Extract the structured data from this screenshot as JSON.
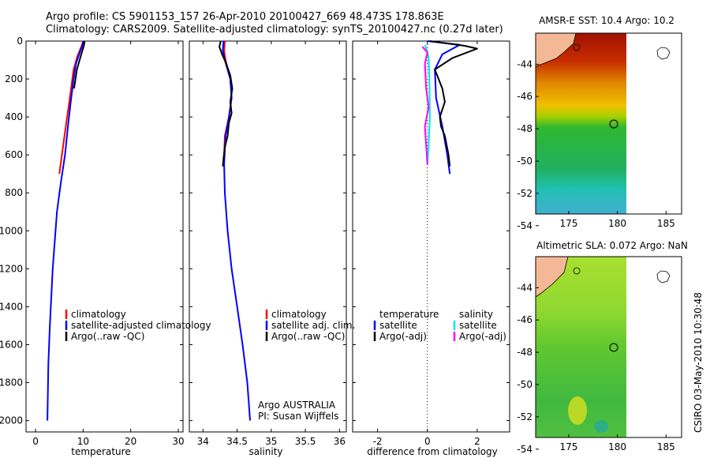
{
  "header": {
    "line1": "Argo profile: CS 5901153_157 26-Apr-2010 20100427_669 48.473S 178.863E",
    "line2": "Climatology: CARS2009. Satellite-adjusted climatology: synTS_20100427.nc (0.27d later)"
  },
  "side_label": "CSIRO 03-May-2010 10:30:48",
  "colors": {
    "climatology": "#ff0000",
    "satellite": "#0000ff",
    "argo": "#000000",
    "argo_adj": "#ff00ff",
    "satellite_diff": "#00e5e5"
  },
  "chart_data": [
    {
      "type": "line",
      "xlabel": "temperature",
      "xlim": [
        -2,
        31
      ],
      "xticks": [
        "0",
        "10",
        "20",
        "30"
      ],
      "ylim": [
        0,
        2060
      ],
      "yticks": [
        "0",
        "200",
        "400",
        "600",
        "800",
        "1000",
        "1200",
        "1400",
        "1600",
        "1800",
        "2000"
      ],
      "legend": [
        "climatology",
        "satellite-adjusted climatology",
        "Argo(..raw -QC)"
      ],
      "series": [
        {
          "key": "climatology",
          "color": "#ff0000",
          "points": [
            [
              10.0,
              0
            ],
            [
              9.6,
              30
            ],
            [
              8.8,
              80
            ],
            [
              8.0,
              150
            ],
            [
              7.2,
              300
            ],
            [
              6.2,
              480
            ],
            [
              5.0,
              700
            ]
          ]
        },
        {
          "key": "satellite",
          "color": "#0000ff",
          "points": [
            [
              10.0,
              0
            ],
            [
              9.9,
              20
            ],
            [
              9.3,
              60
            ],
            [
              8.5,
              120
            ],
            [
              8.0,
              200
            ],
            [
              7.4,
              320
            ],
            [
              6.8,
              450
            ],
            [
              6.2,
              600
            ],
            [
              5.3,
              750
            ],
            [
              4.5,
              900
            ],
            [
              3.6,
              1200
            ],
            [
              3.0,
              1500
            ],
            [
              2.7,
              1700
            ],
            [
              2.5,
              2000
            ]
          ]
        },
        {
          "key": "argo",
          "color": "#000000",
          "points": [
            [
              10.3,
              0
            ],
            [
              10.2,
              20
            ],
            [
              9.6,
              70
            ],
            [
              8.7,
              150
            ],
            [
              8.1,
              250
            ]
          ]
        }
      ]
    },
    {
      "type": "line",
      "xlabel": "salinity",
      "xlim": [
        33.8,
        36.1
      ],
      "xticks": [
        "34",
        "34.5",
        "35",
        "35.5",
        "36"
      ],
      "ylim": [
        0,
        2060
      ],
      "legend": [
        "climatology",
        "satellite adj. clim.",
        "Argo(..raw -QC)"
      ],
      "annotation": [
        "Argo AUSTRALIA",
        "PI: Susan Wijffels"
      ],
      "series": [
        {
          "key": "climatology",
          "color": "#ff0000",
          "points": [
            [
              34.32,
              0
            ],
            [
              34.31,
              50
            ],
            [
              34.33,
              100
            ],
            [
              34.4,
              200
            ],
            [
              34.42,
              300
            ],
            [
              34.38,
              400
            ],
            [
              34.32,
              500
            ],
            [
              34.31,
              600
            ]
          ]
        },
        {
          "key": "satellite",
          "color": "#0000ff",
          "points": [
            [
              34.3,
              0
            ],
            [
              34.29,
              50
            ],
            [
              34.32,
              100
            ],
            [
              34.4,
              200
            ],
            [
              34.42,
              300
            ],
            [
              34.38,
              400
            ],
            [
              34.33,
              500
            ],
            [
              34.31,
              650
            ],
            [
              34.32,
              800
            ],
            [
              34.36,
              1000
            ],
            [
              34.42,
              1200
            ],
            [
              34.5,
              1400
            ],
            [
              34.58,
              1600
            ],
            [
              34.65,
              1800
            ],
            [
              34.69,
              2000
            ]
          ]
        },
        {
          "key": "argo",
          "color": "#000000",
          "points": [
            [
              34.26,
              0
            ],
            [
              34.24,
              30
            ],
            [
              34.28,
              70
            ],
            [
              34.33,
              110
            ],
            [
              34.4,
              180
            ],
            [
              34.43,
              250
            ],
            [
              34.4,
              320
            ],
            [
              34.42,
              380
            ],
            [
              34.38,
              430
            ],
            [
              34.36,
              500
            ],
            [
              34.32,
              560
            ],
            [
              34.3,
              620
            ],
            [
              34.29,
              660
            ]
          ]
        }
      ]
    },
    {
      "type": "line",
      "xlabel": "difference from climatology",
      "xlim": [
        -3,
        3.3
      ],
      "xticks": [
        "-2",
        "0",
        "2"
      ],
      "ylim": [
        0,
        2060
      ],
      "legend_left": [
        "temperature",
        "satellite",
        "Argo(-adj)"
      ],
      "legend_right": [
        "salinity",
        "satellite",
        "Argo(-adj)"
      ],
      "series": [
        {
          "key": "t_satellite",
          "color": "#0000ff",
          "points": [
            [
              0.0,
              0
            ],
            [
              1.3,
              20
            ],
            [
              0.6,
              70
            ],
            [
              0.3,
              150
            ],
            [
              0.35,
              300
            ],
            [
              0.6,
              450
            ],
            [
              0.8,
              600
            ],
            [
              0.9,
              700
            ]
          ]
        },
        {
          "key": "t_argo",
          "color": "#000000",
          "points": [
            [
              0.1,
              0
            ],
            [
              1.5,
              25
            ],
            [
              2.0,
              40
            ],
            [
              1.0,
              90
            ],
            [
              0.3,
              150
            ],
            [
              0.6,
              250
            ],
            [
              0.7,
              320
            ],
            [
              0.5,
              400
            ],
            [
              0.55,
              450
            ],
            [
              0.7,
              500
            ],
            [
              0.85,
              600
            ],
            [
              0.9,
              660
            ]
          ]
        },
        {
          "key": "s_satellite",
          "color": "#00e5e5",
          "points": [
            [
              -0.1,
              20
            ],
            [
              0.05,
              80
            ],
            [
              0.08,
              200
            ],
            [
              0.1,
              400
            ],
            [
              0.05,
              550
            ],
            [
              0.0,
              650
            ]
          ]
        },
        {
          "key": "s_argo",
          "color": "#ff00ff",
          "points": [
            [
              -0.2,
              30
            ],
            [
              0.0,
              60
            ],
            [
              -0.1,
              120
            ],
            [
              -0.05,
              250
            ],
            [
              0.05,
              350
            ],
            [
              -0.1,
              450
            ],
            [
              -0.05,
              550
            ],
            [
              0.0,
              650
            ]
          ]
        }
      ]
    },
    {
      "type": "heatmap",
      "title": "AMSR-E SST: 10.4 Argo: 10.2",
      "xticks": [
        "175",
        "180",
        "185"
      ],
      "yticks": [
        "-44",
        "-46",
        "-48",
        "-50",
        "-52",
        "-54"
      ]
    },
    {
      "type": "heatmap",
      "title": "Altimetric SLA: 0.072 Argo: NaN",
      "xticks": [
        "175",
        "180",
        "185"
      ],
      "yticks": [
        "-44",
        "-46",
        "-48",
        "-50",
        "-52",
        "-54"
      ]
    }
  ]
}
